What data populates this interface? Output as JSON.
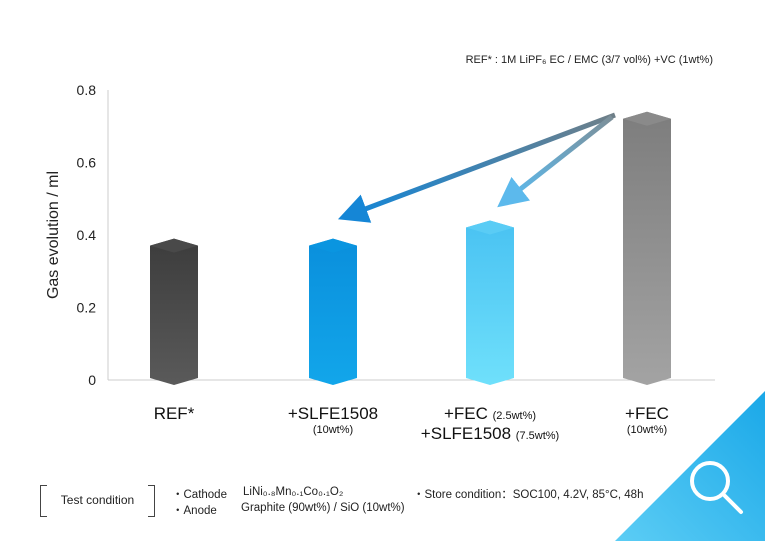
{
  "chart_data": {
    "type": "bar",
    "ylabel": "Gas evolution / ml",
    "ylim": [
      0,
      0.8
    ],
    "yticks": [
      "0",
      "0.2",
      "0.4",
      "0.6",
      "0.8"
    ],
    "categories": [
      {
        "main": "REF*",
        "sub": "",
        "sub_main": "",
        "sub2": ""
      },
      {
        "main": "+SLFE1508",
        "sub": "(10wt%)",
        "sub_main": "",
        "sub2": ""
      },
      {
        "main": "+FEC ",
        "sub": "(2.5wt%)",
        "sub_main": "+SLFE1508 ",
        "sub2": "(7.5wt%)"
      },
      {
        "main": "+FEC",
        "sub": "(10wt%)",
        "sub_main": "",
        "sub2": ""
      }
    ],
    "values": [
      0.39,
      0.39,
      0.44,
      0.74
    ],
    "colors": [
      "#4a4a4a",
      "#0a96e0",
      "#5ccdf5",
      "#8c8c8c"
    ],
    "ref_note": "REF* : 1M LiPF₆ EC / EMC (3/7 vol%) +VC (1wt%)"
  },
  "conditions": {
    "label": "Test condition",
    "cathode_label": "・Cathode",
    "cathode_value": "LiNi₀.₈Mn₀.₁Co₀.₁O₂",
    "anode_label": "・Anode",
    "anode_value": "Graphite (90wt%) / SiO (10wt%)",
    "store": "・Store condition：SOC100, 4.2V, 85°C, 48h"
  },
  "icons": {
    "corner": "search-icon"
  }
}
